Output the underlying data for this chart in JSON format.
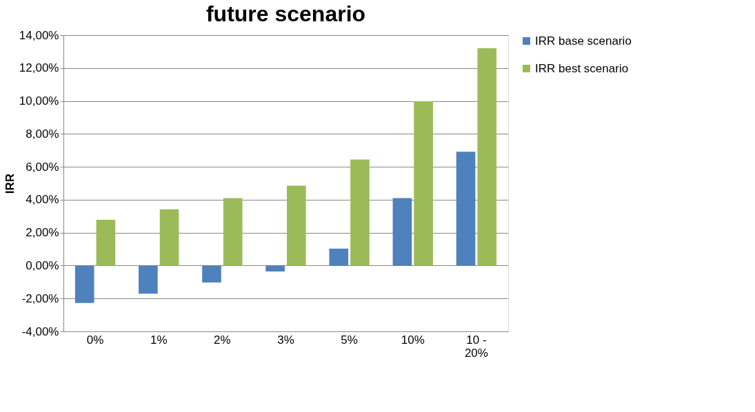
{
  "chart_data": {
    "type": "bar",
    "title": "future scenario",
    "ylabel": "IRR",
    "categories": [
      "0%",
      "1%",
      "2%",
      "3%",
      "5%",
      "10%",
      "10 -\n20%"
    ],
    "series": [
      {
        "name": "IRR base scenario",
        "color": "#4f81bd",
        "values": [
          -2.27,
          -1.71,
          -1.03,
          -0.36,
          1.03,
          4.1,
          6.92
        ]
      },
      {
        "name": "IRR best scenario",
        "color": "#9bbb59",
        "values": [
          2.78,
          3.42,
          4.1,
          4.85,
          6.44,
          9.98,
          13.2
        ]
      }
    ],
    "ylim": [
      -4,
      14
    ],
    "yticks": [
      {
        "value": -4,
        "label": "-4,00%"
      },
      {
        "value": -2,
        "label": "-2,00%"
      },
      {
        "value": 0,
        "label": "0,00%"
      },
      {
        "value": 2,
        "label": "2,00%"
      },
      {
        "value": 4,
        "label": "4,00%"
      },
      {
        "value": 6,
        "label": "6,00%"
      },
      {
        "value": 8,
        "label": "8,00%"
      },
      {
        "value": 10,
        "label": "10,00%"
      },
      {
        "value": 12,
        "label": "12,00%"
      },
      {
        "value": 14,
        "label": "14,00%"
      }
    ],
    "grid": "y",
    "legend": "right"
  }
}
